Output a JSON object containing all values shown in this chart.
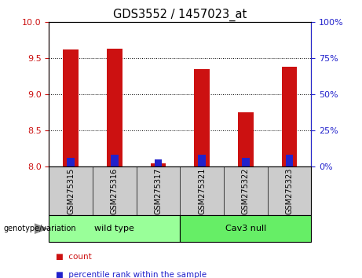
{
  "title": "GDS3552 / 1457023_at",
  "categories": [
    "GSM275315",
    "GSM275316",
    "GSM275317",
    "GSM275321",
    "GSM275322",
    "GSM275323"
  ],
  "count_values": [
    9.62,
    9.63,
    8.05,
    9.35,
    8.75,
    9.38
  ],
  "percentile_values": [
    8.12,
    8.17,
    8.1,
    8.17,
    8.12,
    8.17
  ],
  "ylim_left": [
    8.0,
    10.0
  ],
  "ylim_right": [
    0,
    100
  ],
  "yticks_left": [
    8.0,
    8.5,
    9.0,
    9.5,
    10.0
  ],
  "yticks_right": [
    0,
    25,
    50,
    75,
    100
  ],
  "bar_width": 0.35,
  "bar_base": 8.0,
  "count_color": "#CC1111",
  "percentile_color": "#2222CC",
  "plot_bg_color": "#ffffff",
  "groups": [
    {
      "label": "wild type",
      "indices": [
        0,
        1,
        2
      ],
      "color": "#99FF99"
    },
    {
      "label": "Cav3 null",
      "indices": [
        3,
        4,
        5
      ],
      "color": "#66EE66"
    }
  ],
  "group_row_label": "genotype/variation",
  "legend_items": [
    {
      "label": "count",
      "color": "#CC1111"
    },
    {
      "label": "percentile rank within the sample",
      "color": "#2222CC"
    }
  ],
  "left_tick_color": "#CC1111",
  "right_tick_color": "#2222CC"
}
